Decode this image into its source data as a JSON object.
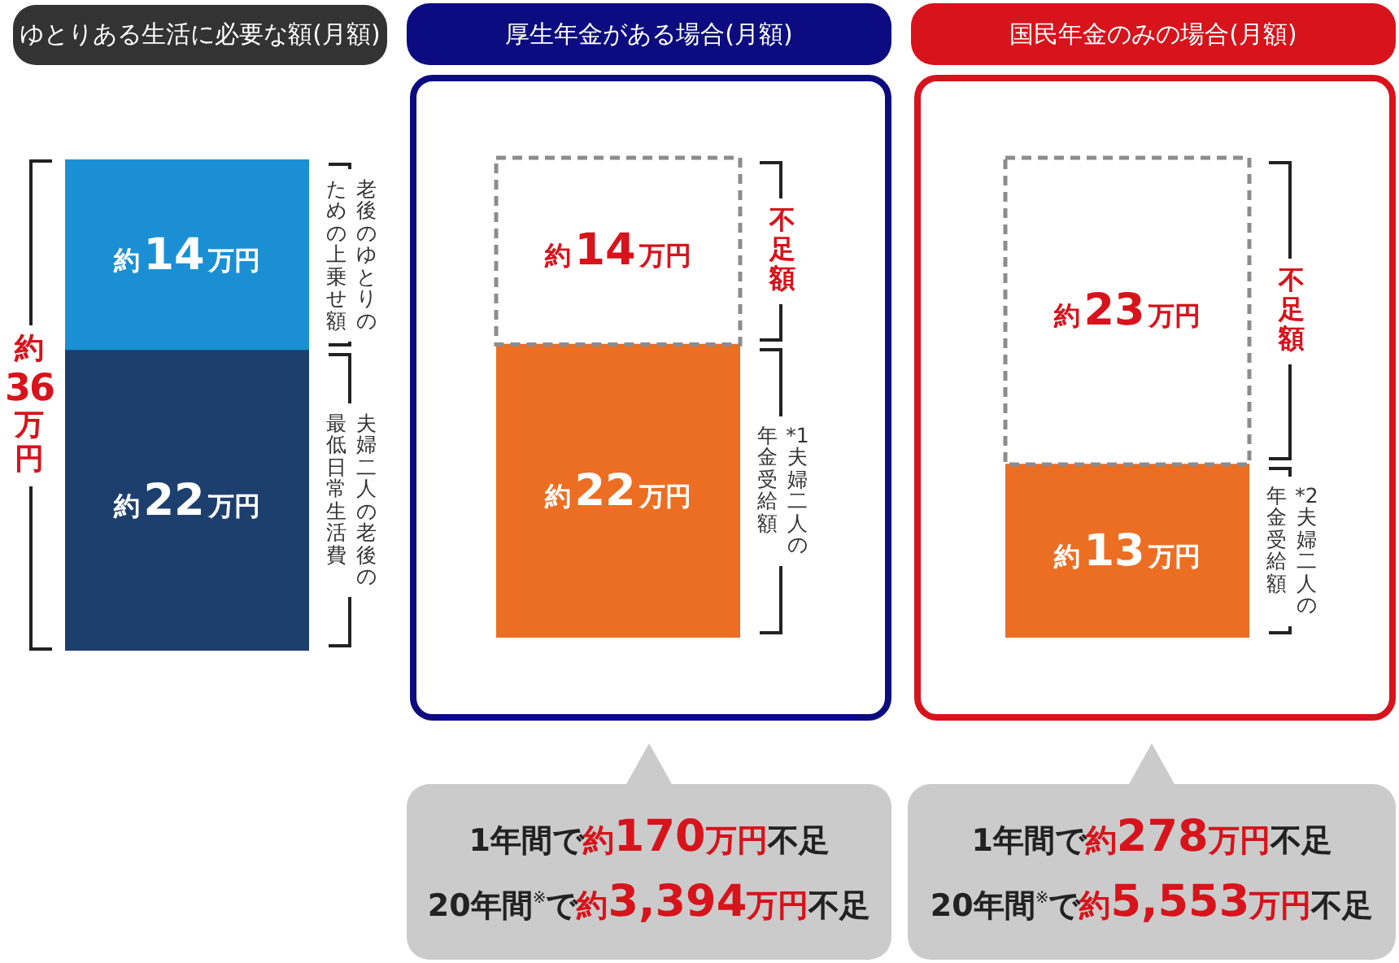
{
  "chart_data": [
    {
      "type": "bar",
      "title": "ゆとりある生活に必要な額(月額)",
      "categories": [
        null
      ],
      "stacked": true,
      "tick_labels": false,
      "series": [
        {
          "name": "夫婦二人の老後の最低日常生活費",
          "color": "#1d3f6e",
          "values": [
            22
          ],
          "value_labels": [
            "約22万円"
          ]
        },
        {
          "name": "老後のゆとりのための上乗せ額",
          "color": "#1b8fd3",
          "values": [
            14
          ],
          "value_labels": [
            "約14万円"
          ]
        }
      ],
      "totals": [
        "約36万円"
      ]
    },
    {
      "type": "bar",
      "title": "厚生年金がある場合(月額)",
      "categories": [
        null
      ],
      "stacked": true,
      "tick_labels": false,
      "series": [
        {
          "name": "*1夫婦二人の年金受給額",
          "color": "#ec6e23",
          "values": [
            22
          ],
          "value_labels": [
            "約22万円"
          ]
        },
        {
          "name": "不足額",
          "color": "#ffffff",
          "line_style": "dashed",
          "values": [
            14
          ],
          "value_labels": [
            "約14万円"
          ]
        }
      ],
      "annotations": [
        "1年間で約170万円不足",
        "20年間$^{※}$で約3,394万円不足"
      ]
    },
    {
      "type": "bar",
      "title": "国民年金のみの場合(月額)",
      "categories": [
        null
      ],
      "stacked": true,
      "tick_labels": false,
      "series": [
        {
          "name": "*2夫婦二人の年金受給額",
          "color": "#ec6e23",
          "values": [
            13
          ],
          "value_labels": [
            "約13万円"
          ]
        },
        {
          "name": "不足額",
          "color": "#ffffff",
          "line_style": "dashed",
          "values": [
            23
          ],
          "value_labels": [
            "約23万円"
          ]
        }
      ],
      "annotations": [
        "1年間で約278万円不足",
        "20年間$^{※}$で約5,553万円不足"
      ]
    }
  ]
}
